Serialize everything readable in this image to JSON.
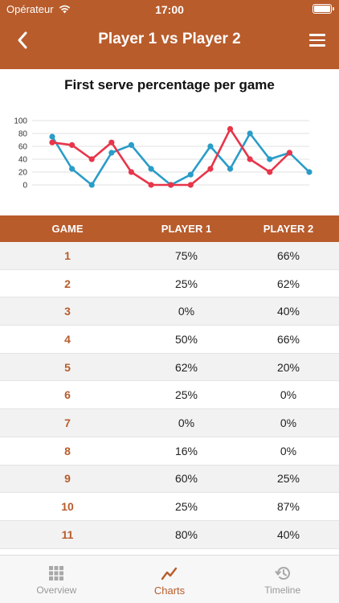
{
  "status_bar": {
    "carrier": "Opérateur",
    "time": "17:00"
  },
  "nav": {
    "title": "Player 1 vs Player 2"
  },
  "chart_data": {
    "type": "line",
    "title": "First serve percentage per game",
    "xlabel": "",
    "ylabel": "",
    "x": [
      1,
      2,
      3,
      4,
      5,
      6,
      7,
      8,
      9,
      10,
      11,
      12,
      13,
      14
    ],
    "ylim": [
      0,
      100
    ],
    "yticks": [
      100,
      80,
      60,
      40,
      20,
      0
    ],
    "grid": true,
    "series": [
      {
        "color": "#2a9cc8",
        "values": [
          75,
          25,
          0,
          50,
          62,
          25,
          0,
          16,
          60,
          25,
          80,
          40,
          50,
          20
        ]
      },
      {
        "color": "#e8354a",
        "values": [
          66,
          62,
          40,
          66,
          20,
          0,
          0,
          0,
          25,
          87,
          40,
          20,
          50,
          null
        ]
      }
    ]
  },
  "table": {
    "headers": {
      "game": "GAME",
      "p1": "PLAYER 1",
      "p2": "PLAYER 2"
    },
    "rows": [
      {
        "game": "1",
        "p1": "75%",
        "p2": "66%"
      },
      {
        "game": "2",
        "p1": "25%",
        "p2": "62%"
      },
      {
        "game": "3",
        "p1": "0%",
        "p2": "40%"
      },
      {
        "game": "4",
        "p1": "50%",
        "p2": "66%"
      },
      {
        "game": "5",
        "p1": "62%",
        "p2": "20%"
      },
      {
        "game": "6",
        "p1": "25%",
        "p2": "0%"
      },
      {
        "game": "7",
        "p1": "0%",
        "p2": "0%"
      },
      {
        "game": "8",
        "p1": "16%",
        "p2": "0%"
      },
      {
        "game": "9",
        "p1": "60%",
        "p2": "25%"
      },
      {
        "game": "10",
        "p1": "25%",
        "p2": "87%"
      },
      {
        "game": "11",
        "p1": "80%",
        "p2": "40%"
      }
    ]
  },
  "tabs": [
    {
      "label": "Overview",
      "icon": "grid-icon",
      "active": false
    },
    {
      "label": "Charts",
      "icon": "line-chart-icon",
      "active": true
    },
    {
      "label": "Timeline",
      "icon": "history-icon",
      "active": false
    }
  ],
  "colors": {
    "brand": "#b85c2c",
    "series1": "#2a9cc8",
    "series2": "#e8354a"
  }
}
